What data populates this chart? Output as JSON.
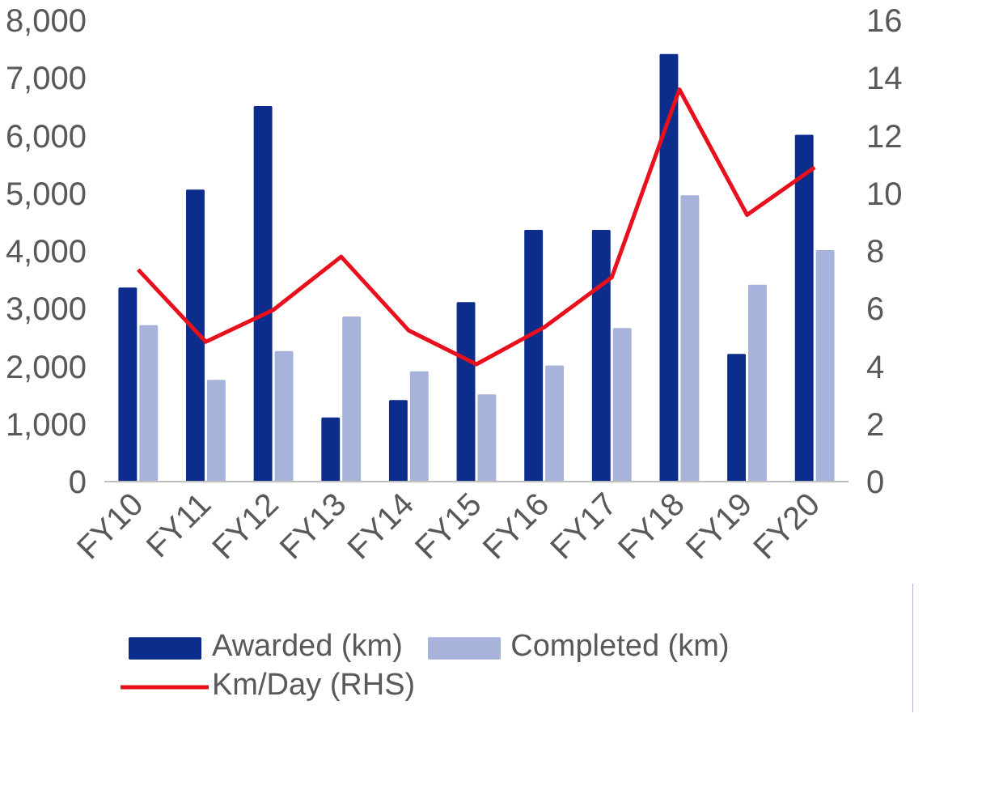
{
  "chart_data": {
    "type": "bar",
    "categories": [
      "FY10",
      "FY11",
      "FY12",
      "FY13",
      "FY14",
      "FY15",
      "FY16",
      "FY17",
      "FY18",
      "FY19",
      "FY20"
    ],
    "series": [
      {
        "name": "Awarded (km)",
        "color": "#0d2d8c",
        "values": [
          3350,
          5050,
          6500,
          1100,
          1400,
          3100,
          4350,
          4350,
          7400,
          2200,
          6000
        ]
      },
      {
        "name": "Completed (km)",
        "color": "#a7b3db",
        "values": [
          2700,
          1750,
          2250,
          2850,
          1900,
          1500,
          2000,
          2650,
          4950,
          3400,
          4000
        ]
      },
      {
        "name": "Km/Day (RHS)",
        "color": "#e8101c",
        "type": "line",
        "axis": "y2",
        "values": [
          7.35,
          4.85,
          5.96,
          7.8,
          5.24,
          4.07,
          5.35,
          7.08,
          13.6,
          9.25,
          10.9
        ]
      }
    ],
    "ylim": [
      0,
      8000
    ],
    "yticks": [
      {
        "value": 0,
        "label": "0"
      },
      {
        "value": 1000,
        "label": "1,000"
      },
      {
        "value": 2000,
        "label": "2,000"
      },
      {
        "value": 3000,
        "label": "3,000"
      },
      {
        "value": 4000,
        "label": "4,000"
      },
      {
        "value": 5000,
        "label": "5,000"
      },
      {
        "value": 6000,
        "label": "6,000"
      },
      {
        "value": 7000,
        "label": "7,000"
      },
      {
        "value": 8000,
        "label": "8,000"
      }
    ],
    "y2lim": [
      0,
      16
    ],
    "y2ticks": [
      0,
      2,
      4,
      6,
      8,
      10,
      12,
      14,
      16
    ],
    "grid": false,
    "legend": "bottom",
    "marker": "none",
    "line_style": "solid"
  }
}
